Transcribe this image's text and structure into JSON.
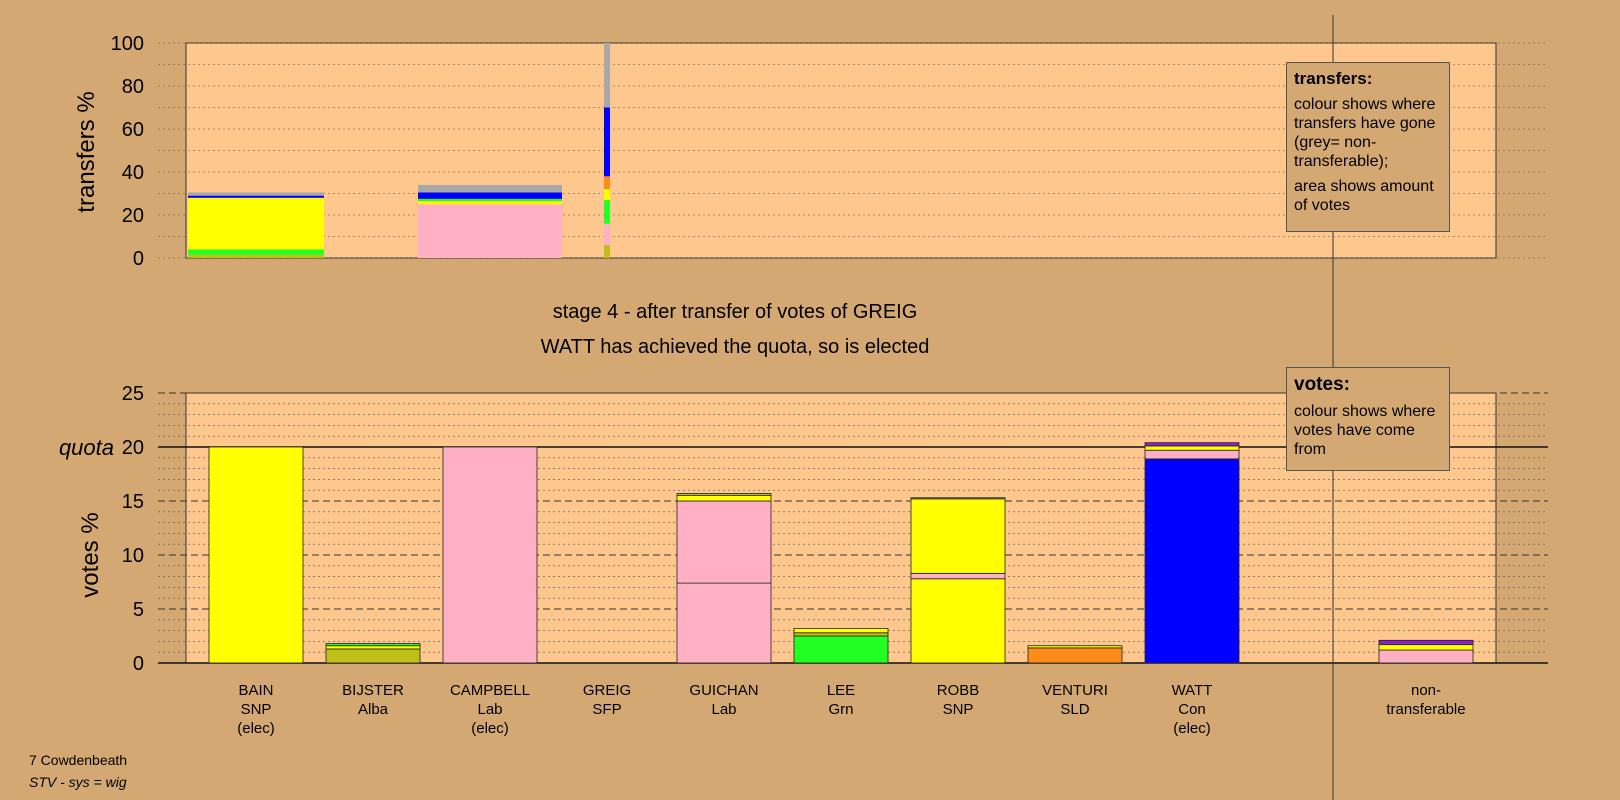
{
  "colors": {
    "background": "#d4a872",
    "plot_background": "#fdc78d",
    "SNP": "#ffff00",
    "Alba": "#bfbf1a",
    "Lab": "#ffb0c4",
    "Grn": "#22ff22",
    "SLD": "#ff8c1a",
    "Con": "#0000ff",
    "SFP": "#d4a872",
    "Other": "#8822cc",
    "non_transferable": "#a8a8a8"
  },
  "header": {
    "stage_line": "stage 4 - after transfer of votes of GREIG",
    "status_line": "WATT has achieved the quota, so is elected"
  },
  "legend_transfers": {
    "title": "transfers:",
    "p1": "colour shows where transfers have gone (grey= non-transferable);",
    "p2": "area shows amount of votes"
  },
  "legend_votes": {
    "title": "votes:",
    "p1": "colour shows where votes have come from"
  },
  "footer": {
    "area": "7 Cowdenbeath",
    "system": "STV - sys = wig"
  },
  "chart_data": [
    {
      "type": "bar",
      "id": "transfers",
      "ylabel": "transfers %",
      "ylim": [
        0,
        100
      ],
      "ticks": [
        0,
        20,
        40,
        60,
        80,
        100
      ],
      "columns": [
        {
          "candidate": "BAIN",
          "segments": [
            {
              "party": "Alba",
              "value": 1.5
            },
            {
              "party": "Grn",
              "value": 2.5
            },
            {
              "party": "SNP",
              "value": 24
            },
            {
              "party": "Con",
              "value": 1
            },
            {
              "party": "non_transferable",
              "value": 1.5
            }
          ]
        },
        {
          "candidate": "CAMPBELL",
          "segments": [
            {
              "party": "Lab",
              "value": 25
            },
            {
              "party": "SNP",
              "value": 1.5
            },
            {
              "party": "Grn",
              "value": 1
            },
            {
              "party": "Con",
              "value": 3
            },
            {
              "party": "non_transferable",
              "value": 3.5
            }
          ]
        },
        {
          "candidate": "GREIG",
          "segments": [
            {
              "party": "Alba",
              "value": 6
            },
            {
              "party": "Lab",
              "value": 10
            },
            {
              "party": "Grn",
              "value": 11
            },
            {
              "party": "SNP",
              "value": 5
            },
            {
              "party": "SLD",
              "value": 6
            },
            {
              "party": "Con",
              "value": 32
            },
            {
              "party": "non_transferable",
              "value": 30
            }
          ]
        }
      ]
    },
    {
      "type": "bar",
      "id": "votes",
      "ylabel": "votes %",
      "quota_label": "quota",
      "quota": 20,
      "ylim": [
        0,
        25
      ],
      "ticks": [
        0,
        5,
        10,
        15,
        20,
        25
      ],
      "categories": [
        {
          "name": "BAIN",
          "party": "SNP",
          "note": "(elec)"
        },
        {
          "name": "BIJSTER",
          "party": "Alba",
          "note": ""
        },
        {
          "name": "CAMPBELL",
          "party": "Lab",
          "note": "(elec)"
        },
        {
          "name": "GREIG",
          "party": "SFP",
          "note": ""
        },
        {
          "name": "GUICHAN",
          "party": "Lab",
          "note": ""
        },
        {
          "name": "LEE",
          "party": "Grn",
          "note": ""
        },
        {
          "name": "ROBB",
          "party": "SNP",
          "note": ""
        },
        {
          "name": "VENTURI",
          "party": "SLD",
          "note": ""
        },
        {
          "name": "WATT",
          "party": "Con",
          "note": "(elec)"
        },
        {
          "name": "non-",
          "party": "transferable",
          "note": ""
        }
      ],
      "stacks": [
        [
          {
            "party": "SNP",
            "value": 20
          }
        ],
        [
          {
            "party": "Alba",
            "value": 1.3
          },
          {
            "party": "SNP",
            "value": 0.3
          },
          {
            "party": "Grn",
            "value": 0.2
          }
        ],
        [
          {
            "party": "Lab",
            "value": 20
          }
        ],
        [],
        [
          {
            "party": "Lab",
            "value": 7.4
          },
          {
            "party": "Lab",
            "value": 7.6
          },
          {
            "party": "SNP",
            "value": 0.5
          },
          {
            "party": "Alba",
            "value": 0.2
          }
        ],
        [
          {
            "party": "Grn",
            "value": 2.5
          },
          {
            "party": "Alba",
            "value": 0.3
          },
          {
            "party": "SNP",
            "value": 0.4
          }
        ],
        [
          {
            "party": "SNP",
            "value": 7.8
          },
          {
            "party": "Lab",
            "value": 0.5
          },
          {
            "party": "SNP",
            "value": 6.9
          },
          {
            "party": "Alba",
            "value": 0.1
          }
        ],
        [
          {
            "party": "SLD",
            "value": 1.4
          },
          {
            "party": "SNP",
            "value": 0.2
          }
        ],
        [
          {
            "party": "Con",
            "value": 18.9
          },
          {
            "party": "Lab",
            "value": 0.8
          },
          {
            "party": "SNP",
            "value": 0.4
          },
          {
            "party": "Other",
            "value": 0.3
          }
        ],
        [
          {
            "party": "Lab",
            "value": 1.2
          },
          {
            "party": "SNP",
            "value": 0.5
          },
          {
            "party": "Other",
            "value": 0.4
          }
        ]
      ]
    }
  ]
}
